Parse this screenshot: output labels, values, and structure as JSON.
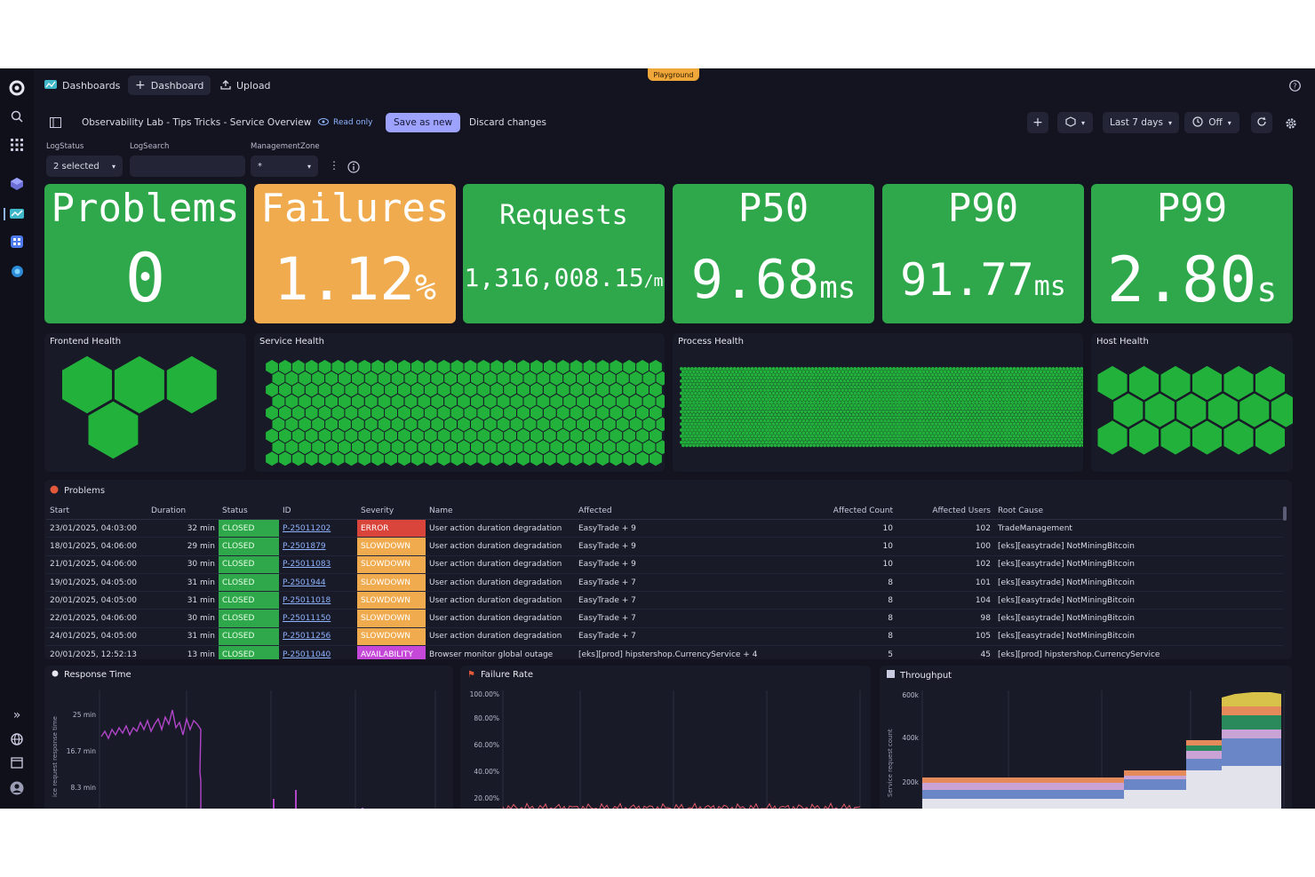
{
  "topbar": {
    "dashboards": "Dashboards",
    "add_dashboard": "Dashboard",
    "upload": "Upload",
    "playground": "Playground"
  },
  "toolbar": {
    "title": "Observability Lab - Tips Tricks - Service Overview",
    "read_only": "Read only",
    "save_as_new": "Save as new",
    "discard": "Discard changes",
    "timeframe": "Last 7 days",
    "refresh": "Off"
  },
  "filters": {
    "logstatus_label": "LogStatus",
    "logstatus_value": "2 selected",
    "logsearch_label": "LogSearch",
    "logsearch_value": "",
    "mz_label": "ManagementZone",
    "mz_value": "*"
  },
  "tiles": [
    {
      "title": "Problems",
      "value": "0",
      "unit": "",
      "color": "#2ea84a"
    },
    {
      "title": "Failures",
      "value": "1.12",
      "unit": "%",
      "color": "#f0ab4e"
    },
    {
      "title": "Requests",
      "value": "1,316,008.15",
      "unit": "/m",
      "color": "#2ea84a"
    },
    {
      "title": "P50",
      "value": "9.68",
      "unit": "ms",
      "color": "#2ea84a"
    },
    {
      "title": "P90",
      "value": "91.77",
      "unit": "ms",
      "color": "#2ea84a"
    },
    {
      "title": "P99",
      "value": "2.80",
      "unit": "s",
      "color": "#2ea84a"
    }
  ],
  "health": {
    "frontend": "Frontend Health",
    "service": "Service Health",
    "process": "Process Health",
    "host": "Host Health"
  },
  "problems": {
    "title": "Problems",
    "columns": [
      "Start",
      "Duration",
      "Status",
      "ID",
      "Severity",
      "Name",
      "Affected",
      "Affected Count",
      "Affected Users",
      "Root Cause"
    ],
    "rows": [
      [
        "23/01/2025, 04:03:00",
        "32 min",
        "CLOSED",
        "P-25011202",
        "ERROR",
        "User action duration degradation",
        "EasyTrade + 9",
        "10",
        "102",
        "TradeManagement"
      ],
      [
        "18/01/2025, 04:06:00",
        "29 min",
        "CLOSED",
        "P-2501879",
        "SLOWDOWN",
        "User action duration degradation",
        "EasyTrade + 9",
        "10",
        "100",
        "[eks][easytrade] NotMiningBitcoin"
      ],
      [
        "21/01/2025, 04:06:00",
        "30 min",
        "CLOSED",
        "P-25011083",
        "SLOWDOWN",
        "User action duration degradation",
        "EasyTrade + 9",
        "10",
        "102",
        "[eks][easytrade] NotMiningBitcoin"
      ],
      [
        "19/01/2025, 04:05:00",
        "31 min",
        "CLOSED",
        "P-2501944",
        "SLOWDOWN",
        "User action duration degradation",
        "EasyTrade + 7",
        "8",
        "101",
        "[eks][easytrade] NotMiningBitcoin"
      ],
      [
        "20/01/2025, 04:05:00",
        "31 min",
        "CLOSED",
        "P-25011018",
        "SLOWDOWN",
        "User action duration degradation",
        "EasyTrade + 7",
        "8",
        "104",
        "[eks][easytrade] NotMiningBitcoin"
      ],
      [
        "22/01/2025, 04:06:00",
        "30 min",
        "CLOSED",
        "P-25011150",
        "SLOWDOWN",
        "User action duration degradation",
        "EasyTrade + 7",
        "8",
        "98",
        "[eks][easytrade] NotMiningBitcoin"
      ],
      [
        "24/01/2025, 04:05:00",
        "31 min",
        "CLOSED",
        "P-25011256",
        "SLOWDOWN",
        "User action duration degradation",
        "EasyTrade + 7",
        "8",
        "105",
        "[eks][easytrade] NotMiningBitcoin"
      ],
      [
        "20/01/2025, 12:52:13",
        "13 min",
        "CLOSED",
        "P-25011040",
        "AVAILABILITY",
        "Browser monitor global outage",
        "[eks][prod] hipstershop.CurrencyService + 4",
        "5",
        "45",
        "[eks][prod] hipstershop.CurrencyService"
      ]
    ],
    "severity_colors": {
      "ERROR": "#d9453b",
      "SLOWDOWN": "#f0ab4e",
      "AVAILABILITY": "#c648d8"
    }
  },
  "charts": {
    "response_time": {
      "title": "Response Time",
      "ylabel": "ice request response time",
      "ticks": [
        "25 min",
        "16.7 min",
        "8.3 min"
      ]
    },
    "failure_rate": {
      "title": "Failure Rate",
      "ticks": [
        "100.00%",
        "80.00%",
        "60.00%",
        "40.00%",
        "20.00%"
      ]
    },
    "throughput": {
      "title": "Throughput",
      "ylabel": "Service request count",
      "ticks": [
        "600k",
        "400k",
        "200k"
      ]
    }
  }
}
